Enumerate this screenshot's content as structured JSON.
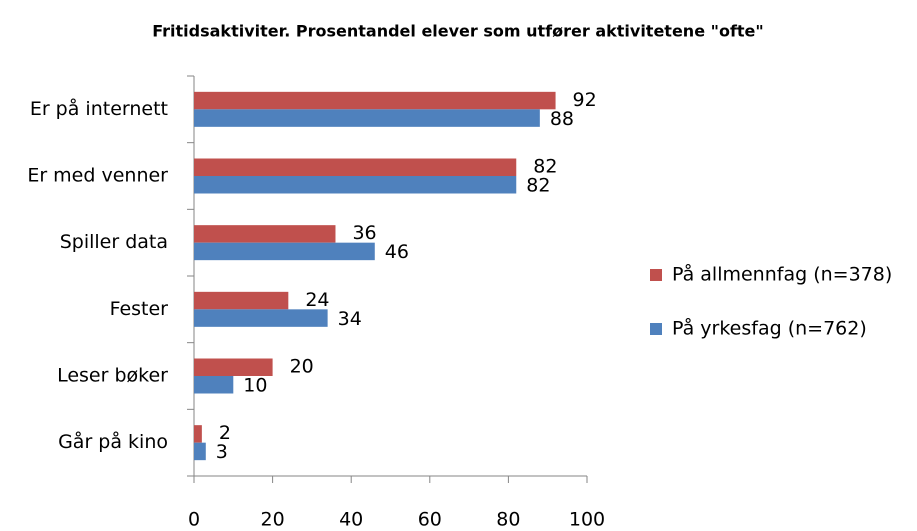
{
  "chart_data": {
    "type": "hbar",
    "title": "Fritidsaktiviter. Prosentandel elever som utfører aktivitetene \"ofte\"",
    "categories": [
      "Er på internett",
      "Er med venner",
      "Spiller data",
      "Fester",
      "Leser bøker",
      "Går på kino"
    ],
    "series": [
      {
        "name": "På allmennfag (n=378)",
        "color": "#c0504d",
        "values": [
          92,
          82,
          36,
          24,
          20,
          2
        ]
      },
      {
        "name": "På yrkesfag (n=762)",
        "color": "#4f81bd",
        "values": [
          88,
          82,
          46,
          34,
          10,
          3
        ]
      }
    ],
    "xlim": [
      0,
      100
    ],
    "xticks": [
      0,
      20,
      40,
      60,
      80,
      100
    ],
    "legend": "right"
  }
}
